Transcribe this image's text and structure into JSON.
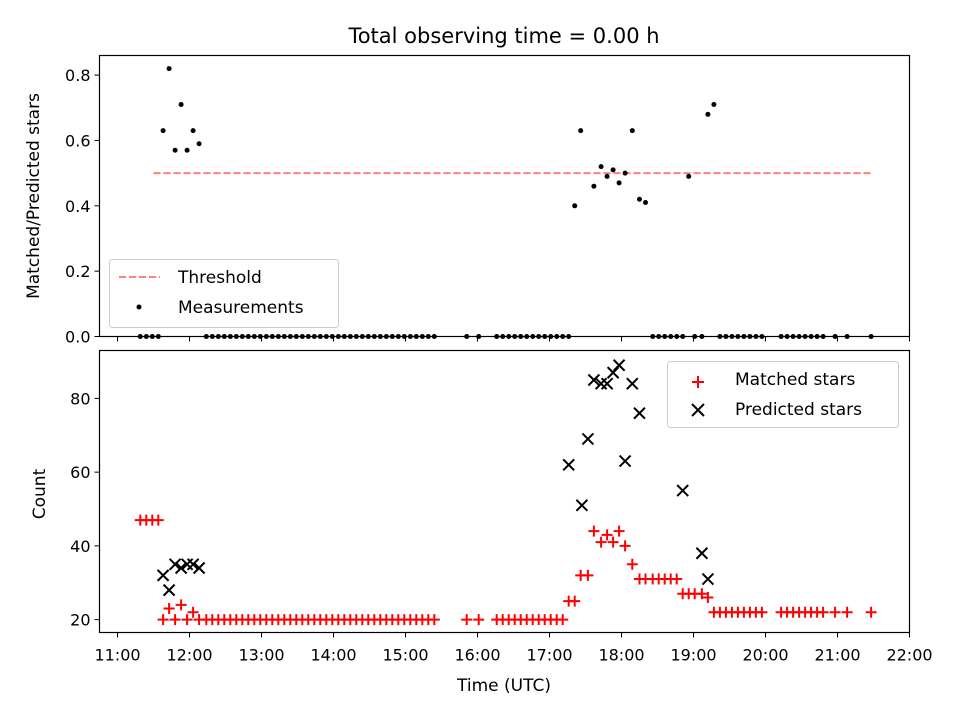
{
  "chart_data": [
    {
      "type": "scatter",
      "title": "Total observing time = 0.00 h",
      "ylabel": "Matched/Predicted stars",
      "xlabel": "",
      "xlim": [
        "10:45",
        "22:00"
      ],
      "ylim": [
        0,
        0.86
      ],
      "yticks": [
        0.0,
        0.2,
        0.4,
        0.6,
        0.8
      ],
      "ytick_labels": [
        "0.0",
        "0.2",
        "0.4",
        "0.6",
        "0.8"
      ],
      "grid": false,
      "legend_position": "lower-left",
      "series": [
        {
          "name": "Threshold",
          "kind": "dashed-line",
          "color": "#ff7f7f",
          "x": [
            "11:30",
            "21:30"
          ],
          "y": [
            0.5,
            0.5
          ]
        },
        {
          "name": "Measurements",
          "kind": "dots",
          "color": "#000000",
          "x": [
            "11:19",
            "11:24",
            "11:29",
            "11:34",
            "11:38",
            "11:43",
            "11:48",
            "11:53",
            "11:58",
            "12:03",
            "12:08",
            "12:14",
            "12:19",
            "12:24",
            "12:29",
            "12:34",
            "12:39",
            "12:44",
            "12:49",
            "12:54",
            "12:59",
            "13:04",
            "13:09",
            "13:14",
            "13:19",
            "13:24",
            "13:29",
            "13:34",
            "13:39",
            "13:44",
            "13:49",
            "13:54",
            "13:59",
            "14:04",
            "14:09",
            "14:14",
            "14:19",
            "14:24",
            "14:29",
            "14:34",
            "14:39",
            "14:44",
            "14:49",
            "14:54",
            "14:59",
            "15:04",
            "15:09",
            "15:14",
            "15:19",
            "15:24",
            "15:51",
            "16:01",
            "16:16",
            "16:21",
            "16:26",
            "16:31",
            "16:36",
            "16:41",
            "16:46",
            "16:51",
            "16:56",
            "17:01",
            "17:06",
            "17:11",
            "17:16",
            "17:21",
            "17:26",
            "17:37",
            "17:43",
            "17:48",
            "17:53",
            "17:58",
            "18:03",
            "18:09",
            "18:15",
            "18:20",
            "18:26",
            "18:31",
            "18:36",
            "18:41",
            "18:46",
            "18:51",
            "18:56",
            "19:01",
            "19:07",
            "19:12",
            "19:17",
            "19:22",
            "19:27",
            "19:32",
            "19:37",
            "19:42",
            "19:47",
            "19:52",
            "19:57",
            "20:13",
            "20:18",
            "20:23",
            "20:28",
            "20:33",
            "20:38",
            "20:43",
            "20:48",
            "20:58",
            "21:08",
            "21:28"
          ],
          "y": [
            0,
            0,
            0,
            0,
            0.63,
            0.82,
            0.57,
            0.71,
            0.57,
            0.63,
            0.59,
            0,
            0,
            0,
            0,
            0,
            0,
            0,
            0,
            0,
            0,
            0,
            0,
            0,
            0,
            0,
            0,
            0,
            0,
            0,
            0,
            0,
            0,
            0,
            0,
            0,
            0,
            0,
            0,
            0,
            0,
            0,
            0,
            0,
            0,
            0,
            0,
            0,
            0,
            0,
            0,
            0,
            0,
            0,
            0,
            0,
            0,
            0,
            0,
            0,
            0,
            0,
            0,
            0,
            0,
            0.4,
            0.63,
            0.46,
            0.52,
            0.49,
            0.51,
            0.47,
            0.5,
            0.63,
            0.42,
            0.41,
            0,
            0,
            0,
            0,
            0,
            0,
            0.49,
            0,
            0,
            0.68,
            0.71,
            0,
            0,
            0,
            0,
            0,
            0,
            0,
            0,
            0,
            0,
            0,
            0,
            0,
            0,
            0,
            0,
            0,
            0,
            0
          ]
        }
      ]
    },
    {
      "type": "scatter",
      "title": "",
      "xlabel": "Time (UTC)",
      "ylabel": "Count",
      "xlim": [
        "10:45",
        "22:00"
      ],
      "ylim": [
        16.5,
        93
      ],
      "xticks": [
        "11:00",
        "12:00",
        "13:00",
        "14:00",
        "15:00",
        "16:00",
        "17:00",
        "18:00",
        "19:00",
        "20:00",
        "21:00",
        "22:00"
      ],
      "yticks": [
        20,
        40,
        60,
        80
      ],
      "ytick_labels": [
        "20",
        "40",
        "60",
        "80"
      ],
      "grid": false,
      "legend_position": "upper-right",
      "series": [
        {
          "name": "Matched stars",
          "marker": "plus",
          "color": "#ff0000",
          "x": [
            "11:19",
            "11:24",
            "11:29",
            "11:34",
            "11:38",
            "11:43",
            "11:48",
            "11:53",
            "11:58",
            "12:03",
            "12:08",
            "12:14",
            "12:19",
            "12:24",
            "12:29",
            "12:34",
            "12:39",
            "12:44",
            "12:49",
            "12:54",
            "12:59",
            "13:04",
            "13:09",
            "13:14",
            "13:19",
            "13:24",
            "13:29",
            "13:34",
            "13:39",
            "13:44",
            "13:49",
            "13:54",
            "13:59",
            "14:04",
            "14:09",
            "14:14",
            "14:19",
            "14:24",
            "14:29",
            "14:34",
            "14:39",
            "14:44",
            "14:49",
            "14:54",
            "14:59",
            "15:04",
            "15:09",
            "15:14",
            "15:19",
            "15:24",
            "15:51",
            "16:01",
            "16:16",
            "16:21",
            "16:26",
            "16:31",
            "16:36",
            "16:41",
            "16:46",
            "16:51",
            "16:56",
            "17:01",
            "17:06",
            "17:11",
            "17:16",
            "17:21",
            "17:26",
            "17:32",
            "17:37",
            "17:43",
            "17:48",
            "17:53",
            "17:58",
            "18:03",
            "18:09",
            "18:15",
            "18:20",
            "18:26",
            "18:31",
            "18:36",
            "18:41",
            "18:46",
            "18:51",
            "18:56",
            "19:01",
            "19:07",
            "19:12",
            "19:17",
            "19:22",
            "19:27",
            "19:32",
            "19:37",
            "19:42",
            "19:47",
            "19:52",
            "19:57",
            "20:13",
            "20:18",
            "20:23",
            "20:28",
            "20:33",
            "20:38",
            "20:43",
            "20:48",
            "20:58",
            "21:08",
            "21:28"
          ],
          "y": [
            47,
            47,
            47,
            47,
            20,
            23,
            20,
            24,
            20,
            22,
            20,
            20,
            20,
            20,
            20,
            20,
            20,
            20,
            20,
            20,
            20,
            20,
            20,
            20,
            20,
            20,
            20,
            20,
            20,
            20,
            20,
            20,
            20,
            20,
            20,
            20,
            20,
            20,
            20,
            20,
            20,
            20,
            20,
            20,
            20,
            20,
            20,
            20,
            20,
            20,
            20,
            20,
            20,
            20,
            20,
            20,
            20,
            20,
            20,
            20,
            20,
            20,
            20,
            20,
            25,
            25,
            32,
            32,
            44,
            41,
            43,
            41,
            44,
            40,
            35,
            31,
            31,
            31,
            31,
            31,
            31,
            31,
            27,
            27,
            27,
            27,
            26,
            22,
            22,
            22,
            22,
            22,
            22,
            22,
            22,
            22,
            22,
            22,
            22,
            22,
            22,
            22,
            22,
            22,
            22,
            22,
            22
          ]
        },
        {
          "name": "Predicted stars",
          "marker": "x",
          "color": "#000000",
          "x": [
            "11:38",
            "11:43",
            "11:48",
            "11:53",
            "11:58",
            "12:03",
            "12:08",
            "17:16",
            "17:27",
            "17:32",
            "17:37",
            "17:43",
            "17:48",
            "17:53",
            "17:58",
            "18:03",
            "18:09",
            "18:15",
            "18:51",
            "19:07",
            "19:12"
          ],
          "y": [
            32,
            28,
            35,
            34,
            35,
            35,
            34,
            62,
            51,
            69,
            85,
            84,
            84,
            87,
            89,
            63,
            84,
            76,
            55,
            38,
            31
          ]
        }
      ]
    }
  ]
}
